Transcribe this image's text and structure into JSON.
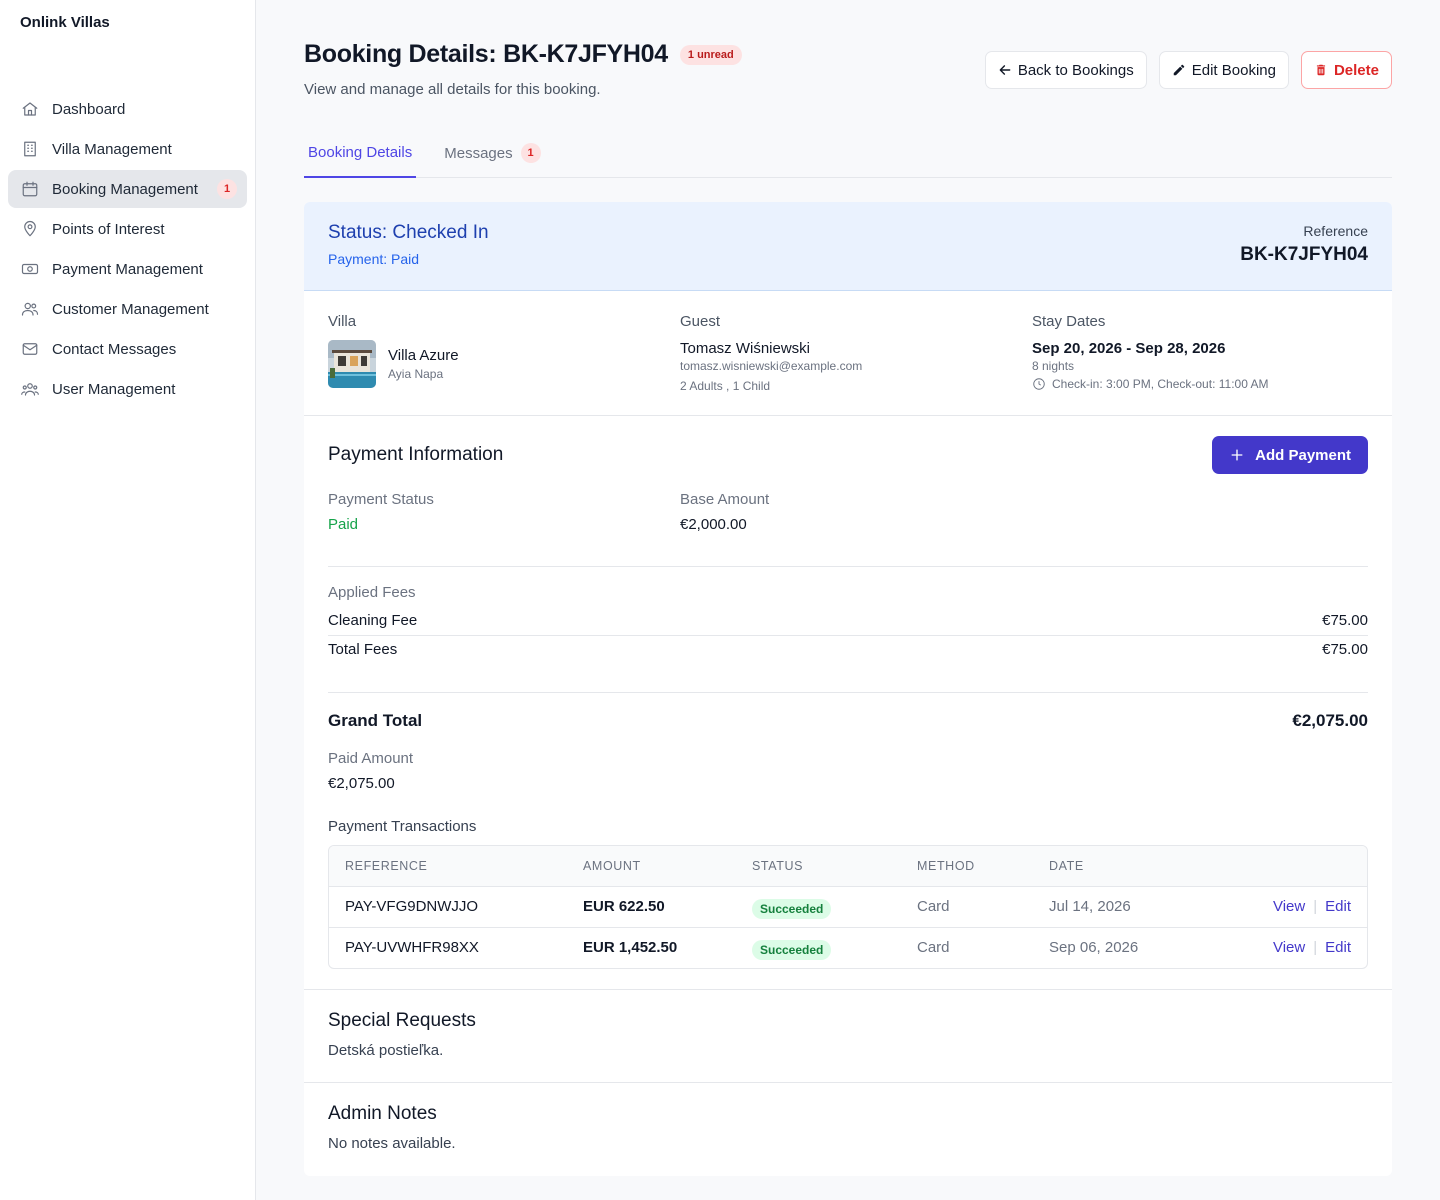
{
  "app": {
    "brand": "Onlink Villas"
  },
  "sidebar": {
    "items": [
      {
        "label": "Dashboard",
        "icon": "home-icon"
      },
      {
        "label": "Villa Management",
        "icon": "building-icon"
      },
      {
        "label": "Booking Management",
        "icon": "calendar-icon",
        "badge": "1",
        "active": true
      },
      {
        "label": "Points of Interest",
        "icon": "map-pin-icon"
      },
      {
        "label": "Payment Management",
        "icon": "cash-icon"
      },
      {
        "label": "Customer Management",
        "icon": "users-icon"
      },
      {
        "label": "Contact Messages",
        "icon": "mail-icon"
      },
      {
        "label": "User Management",
        "icon": "user-group-icon"
      }
    ]
  },
  "header": {
    "title": "Booking Details: BK-K7JFYH04",
    "unread_badge": "1 unread",
    "subtitle": "View and manage all details for this booking.",
    "back_label": "Back to Bookings",
    "edit_label": "Edit Booking",
    "delete_label": "Delete"
  },
  "tabs": [
    {
      "label": "Booking Details",
      "active": true
    },
    {
      "label": "Messages",
      "badge": "1"
    }
  ],
  "status": {
    "title": "Status: Checked In",
    "payment": "Payment: Paid",
    "reference_label": "Reference",
    "reference_value": "BK-K7JFYH04"
  },
  "villa": {
    "label": "Villa",
    "name": "Villa Azure",
    "location": "Ayia Napa"
  },
  "guest": {
    "label": "Guest",
    "name": "Tomasz Wiśniewski",
    "email": "tomasz.wisniewski@example.com",
    "party": "2 Adults , 1 Child"
  },
  "stay": {
    "label": "Stay Dates",
    "dates": "Sep 20, 2026 - Sep 28, 2026",
    "nights": "8 nights",
    "checkin": "Check-in: 3:00 PM, Check-out: 11:00 AM"
  },
  "payment": {
    "title": "Payment Information",
    "add_label": "Add Payment",
    "status_label": "Payment Status",
    "status_value": "Paid",
    "base_label": "Base Amount",
    "base_value": "€2,000.00",
    "fees_label": "Applied Fees",
    "fees": [
      {
        "name": "Cleaning Fee",
        "amount": "€75.00"
      }
    ],
    "total_fees_label": "Total Fees",
    "total_fees_value": "€75.00",
    "grand_total_label": "Grand Total",
    "grand_total_value": "€2,075.00",
    "paid_label": "Paid Amount",
    "paid_value": "€2,075.00",
    "transactions_label": "Payment Transactions",
    "columns": [
      "REFERENCE",
      "AMOUNT",
      "STATUS",
      "METHOD",
      "DATE"
    ],
    "transactions": [
      {
        "reference": "PAY-VFG9DNWJJO",
        "amount": "EUR 622.50",
        "status": "Succeeded",
        "method": "Card",
        "date": "Jul 14, 2026",
        "view": "View",
        "edit": "Edit"
      },
      {
        "reference": "PAY-UVWHFR98XX",
        "amount": "EUR 1,452.50",
        "status": "Succeeded",
        "method": "Card",
        "date": "Sep 06, 2026",
        "view": "View",
        "edit": "Edit"
      }
    ]
  },
  "special": {
    "title": "Special Requests",
    "text": "Detská postieľka."
  },
  "notes": {
    "title": "Admin Notes",
    "text": "No notes available."
  },
  "colors": {
    "accent": "#4338ca",
    "paid": "#16a34a",
    "danger": "#dc2626",
    "status_bg": "#eaf2fe"
  }
}
